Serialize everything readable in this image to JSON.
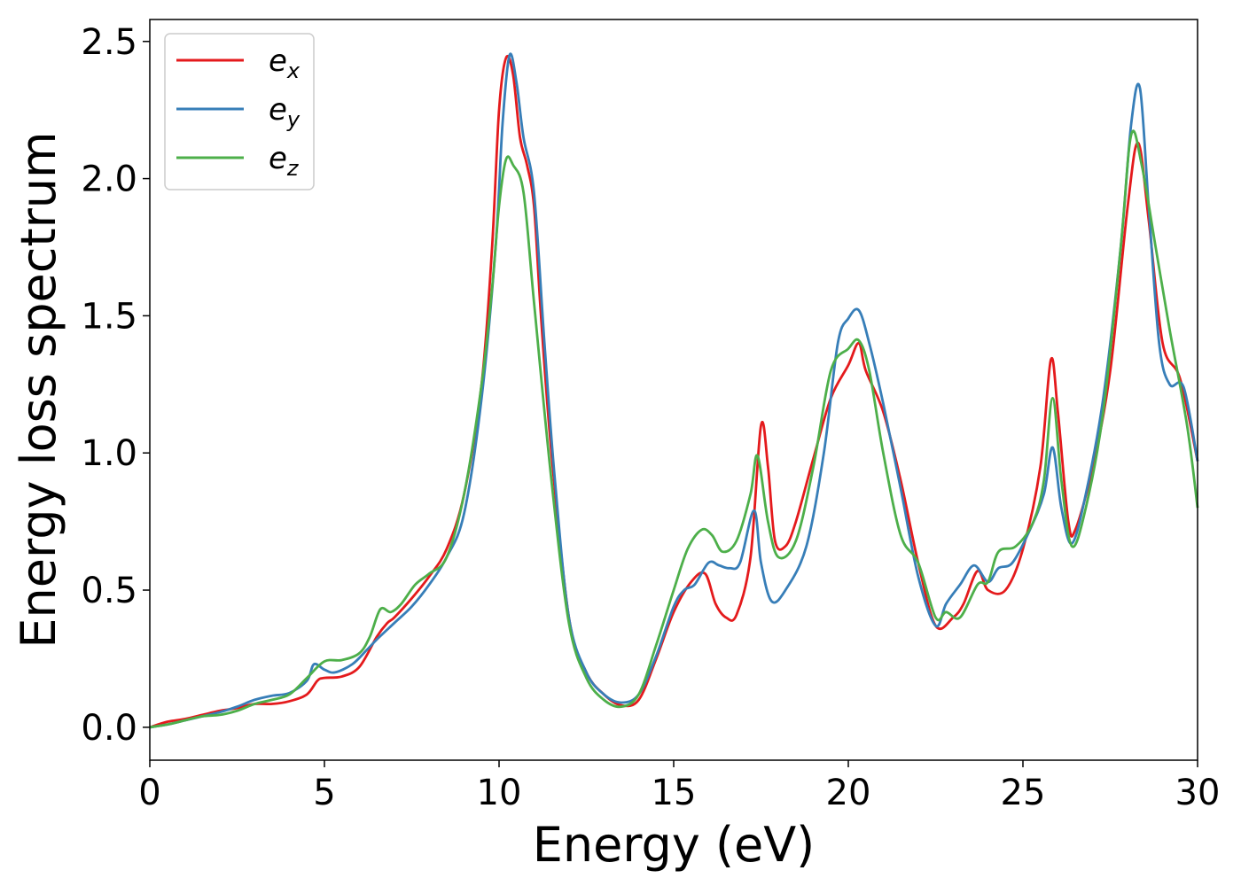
{
  "chart_data": {
    "type": "line",
    "xlabel": "Energy (eV)",
    "ylabel": "Energy loss spectrum",
    "xlim": [
      0,
      30
    ],
    "ylim": [
      -0.12,
      2.58
    ],
    "xticks": [
      0,
      5,
      10,
      15,
      20,
      25,
      30
    ],
    "xtick_labels": [
      "0",
      "5",
      "10",
      "15",
      "20",
      "25",
      "30"
    ],
    "yticks": [
      0.0,
      0.5,
      1.0,
      1.5,
      2.0,
      2.5
    ],
    "ytick_labels": [
      "0.0",
      "0.5",
      "1.0",
      "1.5",
      "2.0",
      "2.5"
    ],
    "grid": false,
    "legend_position": "top-left",
    "series": [
      {
        "name": "e",
        "subscript": "x",
        "color": "#e41a1c",
        "points": [
          [
            0,
            0.0
          ],
          [
            0.5,
            0.02
          ],
          [
            1.0,
            0.03
          ],
          [
            1.5,
            0.045
          ],
          [
            2.0,
            0.06
          ],
          [
            2.5,
            0.07
          ],
          [
            3.0,
            0.085
          ],
          [
            3.5,
            0.085
          ],
          [
            4.0,
            0.095
          ],
          [
            4.5,
            0.12
          ],
          [
            4.8,
            0.17
          ],
          [
            5.0,
            0.18
          ],
          [
            5.5,
            0.185
          ],
          [
            6.0,
            0.22
          ],
          [
            6.5,
            0.33
          ],
          [
            6.8,
            0.38
          ],
          [
            7.0,
            0.4
          ],
          [
            7.5,
            0.47
          ],
          [
            8.0,
            0.55
          ],
          [
            8.5,
            0.65
          ],
          [
            9.0,
            0.85
          ],
          [
            9.5,
            1.25
          ],
          [
            9.8,
            1.75
          ],
          [
            10.0,
            2.25
          ],
          [
            10.2,
            2.44
          ],
          [
            10.4,
            2.38
          ],
          [
            10.6,
            2.15
          ],
          [
            10.8,
            2.05
          ],
          [
            11.0,
            1.9
          ],
          [
            11.2,
            1.5
          ],
          [
            11.5,
            1.0
          ],
          [
            12.0,
            0.4
          ],
          [
            12.5,
            0.2
          ],
          [
            13.0,
            0.12
          ],
          [
            13.5,
            0.08
          ],
          [
            14.0,
            0.1
          ],
          [
            14.5,
            0.25
          ],
          [
            15.0,
            0.42
          ],
          [
            15.5,
            0.53
          ],
          [
            15.9,
            0.56
          ],
          [
            16.2,
            0.45
          ],
          [
            16.5,
            0.4
          ],
          [
            16.8,
            0.41
          ],
          [
            17.2,
            0.62
          ],
          [
            17.5,
            1.1
          ],
          [
            17.7,
            0.95
          ],
          [
            17.9,
            0.68
          ],
          [
            18.2,
            0.66
          ],
          [
            18.5,
            0.75
          ],
          [
            19.0,
            0.98
          ],
          [
            19.5,
            1.2
          ],
          [
            20.0,
            1.32
          ],
          [
            20.3,
            1.4
          ],
          [
            20.5,
            1.3
          ],
          [
            21.0,
            1.15
          ],
          [
            21.5,
            0.9
          ],
          [
            22.0,
            0.6
          ],
          [
            22.5,
            0.37
          ],
          [
            23.0,
            0.4
          ],
          [
            23.3,
            0.45
          ],
          [
            23.7,
            0.57
          ],
          [
            24.0,
            0.5
          ],
          [
            24.5,
            0.5
          ],
          [
            25.0,
            0.65
          ],
          [
            25.5,
            0.95
          ],
          [
            25.8,
            1.34
          ],
          [
            26.0,
            1.15
          ],
          [
            26.3,
            0.75
          ],
          [
            26.5,
            0.72
          ],
          [
            27.0,
            0.95
          ],
          [
            27.5,
            1.3
          ],
          [
            28.0,
            1.9
          ],
          [
            28.3,
            2.13
          ],
          [
            28.6,
            1.85
          ],
          [
            29.0,
            1.4
          ],
          [
            29.5,
            1.27
          ],
          [
            30.0,
            0.97
          ]
        ]
      },
      {
        "name": "e",
        "subscript": "y",
        "color": "#377eb8",
        "points": [
          [
            0,
            0.0
          ],
          [
            0.5,
            0.01
          ],
          [
            1.0,
            0.025
          ],
          [
            1.5,
            0.04
          ],
          [
            2.0,
            0.055
          ],
          [
            2.5,
            0.075
          ],
          [
            3.0,
            0.1
          ],
          [
            3.5,
            0.115
          ],
          [
            4.0,
            0.125
          ],
          [
            4.5,
            0.17
          ],
          [
            4.7,
            0.23
          ],
          [
            5.0,
            0.21
          ],
          [
            5.3,
            0.2
          ],
          [
            5.8,
            0.23
          ],
          [
            6.2,
            0.28
          ],
          [
            6.5,
            0.32
          ],
          [
            7.0,
            0.38
          ],
          [
            7.5,
            0.44
          ],
          [
            8.0,
            0.52
          ],
          [
            8.5,
            0.62
          ],
          [
            9.0,
            0.78
          ],
          [
            9.5,
            1.2
          ],
          [
            9.9,
            1.75
          ],
          [
            10.1,
            2.2
          ],
          [
            10.3,
            2.45
          ],
          [
            10.5,
            2.35
          ],
          [
            10.7,
            2.15
          ],
          [
            11.0,
            1.95
          ],
          [
            11.3,
            1.4
          ],
          [
            11.6,
            0.9
          ],
          [
            12.0,
            0.4
          ],
          [
            12.5,
            0.2
          ],
          [
            13.0,
            0.12
          ],
          [
            13.5,
            0.09
          ],
          [
            14.0,
            0.12
          ],
          [
            14.5,
            0.26
          ],
          [
            15.0,
            0.44
          ],
          [
            15.3,
            0.5
          ],
          [
            15.6,
            0.52
          ],
          [
            16.0,
            0.6
          ],
          [
            16.3,
            0.59
          ],
          [
            16.6,
            0.58
          ],
          [
            16.9,
            0.6
          ],
          [
            17.3,
            0.79
          ],
          [
            17.5,
            0.6
          ],
          [
            17.8,
            0.46
          ],
          [
            18.2,
            0.5
          ],
          [
            18.8,
            0.66
          ],
          [
            19.3,
            1.0
          ],
          [
            19.7,
            1.4
          ],
          [
            20.0,
            1.49
          ],
          [
            20.3,
            1.52
          ],
          [
            20.6,
            1.4
          ],
          [
            21.0,
            1.18
          ],
          [
            21.5,
            0.87
          ],
          [
            22.0,
            0.55
          ],
          [
            22.5,
            0.37
          ],
          [
            22.8,
            0.45
          ],
          [
            23.2,
            0.52
          ],
          [
            23.6,
            0.59
          ],
          [
            24.0,
            0.53
          ],
          [
            24.3,
            0.58
          ],
          [
            24.7,
            0.6
          ],
          [
            25.2,
            0.72
          ],
          [
            25.6,
            0.85
          ],
          [
            25.85,
            1.02
          ],
          [
            26.1,
            0.8
          ],
          [
            26.4,
            0.67
          ],
          [
            26.8,
            0.85
          ],
          [
            27.3,
            1.2
          ],
          [
            27.8,
            1.75
          ],
          [
            28.1,
            2.2
          ],
          [
            28.35,
            2.33
          ],
          [
            28.6,
            1.9
          ],
          [
            28.9,
            1.4
          ],
          [
            29.2,
            1.25
          ],
          [
            29.6,
            1.24
          ],
          [
            30.0,
            0.97
          ]
        ]
      },
      {
        "name": "e",
        "subscript": "z",
        "color": "#4daf4a",
        "points": [
          [
            0,
            0.0
          ],
          [
            0.5,
            0.01
          ],
          [
            1.0,
            0.025
          ],
          [
            1.5,
            0.04
          ],
          [
            2.0,
            0.045
          ],
          [
            2.5,
            0.06
          ],
          [
            3.0,
            0.085
          ],
          [
            3.5,
            0.1
          ],
          [
            4.0,
            0.12
          ],
          [
            4.5,
            0.18
          ],
          [
            5.0,
            0.24
          ],
          [
            5.5,
            0.245
          ],
          [
            6.0,
            0.27
          ],
          [
            6.3,
            0.33
          ],
          [
            6.6,
            0.43
          ],
          [
            6.9,
            0.42
          ],
          [
            7.2,
            0.45
          ],
          [
            7.6,
            0.52
          ],
          [
            8.0,
            0.56
          ],
          [
            8.5,
            0.62
          ],
          [
            9.0,
            0.85
          ],
          [
            9.5,
            1.25
          ],
          [
            9.8,
            1.6
          ],
          [
            10.0,
            1.9
          ],
          [
            10.2,
            2.07
          ],
          [
            10.4,
            2.05
          ],
          [
            10.7,
            1.95
          ],
          [
            11.0,
            1.55
          ],
          [
            11.5,
            0.9
          ],
          [
            12.0,
            0.38
          ],
          [
            12.5,
            0.18
          ],
          [
            13.0,
            0.1
          ],
          [
            13.5,
            0.075
          ],
          [
            14.0,
            0.12
          ],
          [
            14.5,
            0.3
          ],
          [
            15.0,
            0.5
          ],
          [
            15.4,
            0.65
          ],
          [
            15.8,
            0.72
          ],
          [
            16.1,
            0.7
          ],
          [
            16.4,
            0.64
          ],
          [
            16.8,
            0.68
          ],
          [
            17.2,
            0.85
          ],
          [
            17.4,
            0.99
          ],
          [
            17.7,
            0.75
          ],
          [
            18.0,
            0.62
          ],
          [
            18.5,
            0.68
          ],
          [
            19.0,
            0.95
          ],
          [
            19.5,
            1.3
          ],
          [
            20.0,
            1.38
          ],
          [
            20.3,
            1.41
          ],
          [
            20.6,
            1.3
          ],
          [
            21.0,
            1.0
          ],
          [
            21.5,
            0.7
          ],
          [
            22.0,
            0.6
          ],
          [
            22.5,
            0.4
          ],
          [
            22.8,
            0.42
          ],
          [
            23.2,
            0.4
          ],
          [
            23.7,
            0.52
          ],
          [
            24.0,
            0.53
          ],
          [
            24.3,
            0.64
          ],
          [
            24.8,
            0.66
          ],
          [
            25.3,
            0.75
          ],
          [
            25.6,
            0.9
          ],
          [
            25.85,
            1.2
          ],
          [
            26.1,
            0.9
          ],
          [
            26.4,
            0.66
          ],
          [
            26.8,
            0.8
          ],
          [
            27.3,
            1.15
          ],
          [
            27.8,
            1.75
          ],
          [
            28.1,
            2.16
          ],
          [
            28.4,
            2.05
          ],
          [
            28.8,
            1.75
          ],
          [
            29.2,
            1.45
          ],
          [
            29.7,
            1.1
          ],
          [
            30.0,
            0.8
          ]
        ]
      }
    ]
  }
}
